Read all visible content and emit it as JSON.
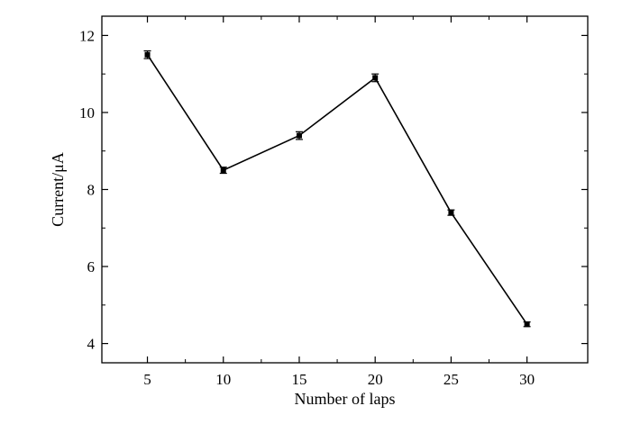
{
  "chart_data": {
    "type": "line",
    "xlabel": "Number of laps",
    "ylabel": "Current/μA",
    "x": [
      5,
      10,
      15,
      20,
      25,
      30
    ],
    "series": [
      {
        "values": [
          11.5,
          8.5,
          9.4,
          10.9,
          7.4,
          4.5
        ],
        "errors": [
          0.1,
          0.08,
          0.1,
          0.1,
          0.07,
          0.06
        ],
        "marker": "square",
        "color": "#000000"
      }
    ],
    "xlim": [
      2,
      34
    ],
    "ylim": [
      3.5,
      12.5
    ],
    "x_ticks": [
      5,
      10,
      15,
      20,
      25,
      30
    ],
    "y_ticks": [
      4,
      6,
      8,
      10,
      12
    ],
    "x_tick_labels": [
      "5",
      "10",
      "15",
      "20",
      "25",
      "30"
    ],
    "y_tick_labels": [
      "4",
      "6",
      "8",
      "10",
      "12"
    ],
    "grid": false,
    "legend": "none"
  }
}
